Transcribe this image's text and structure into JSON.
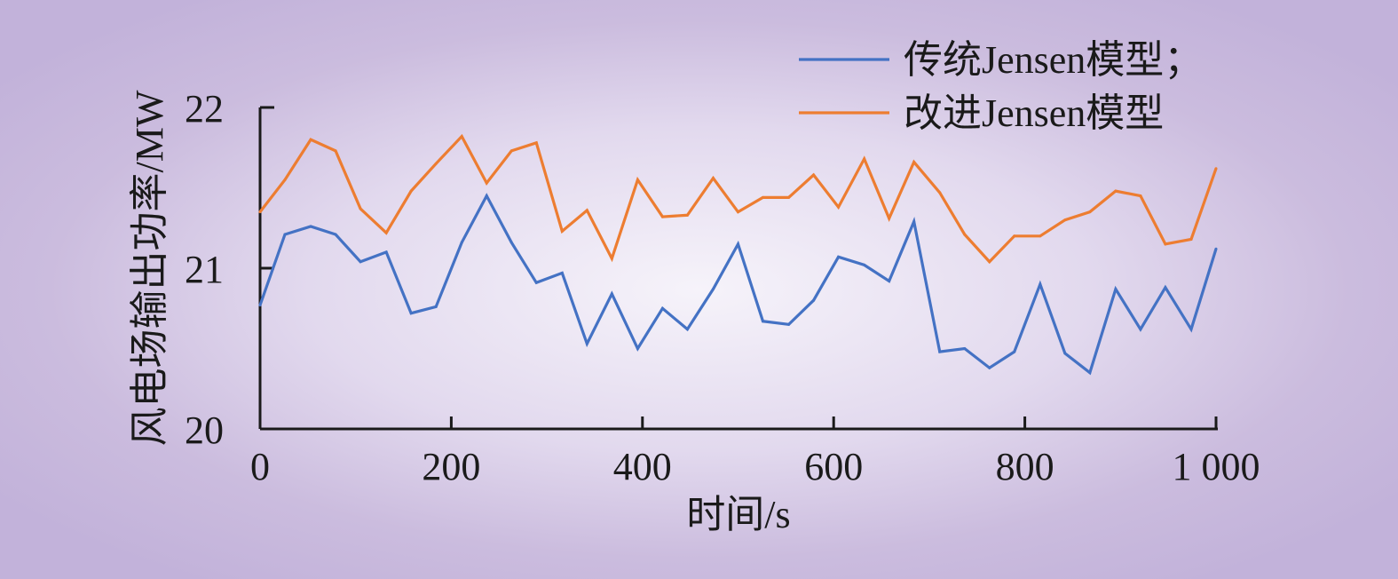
{
  "chart_data": {
    "type": "line",
    "xlabel": "时间/s",
    "ylabel": "风电场输出功率/MW",
    "xlim": [
      0,
      1000
    ],
    "ylim": [
      20,
      22
    ],
    "xticks": [
      0,
      200,
      400,
      600,
      800,
      1000
    ],
    "xtick_labels": [
      "0",
      "200",
      "400",
      "600",
      "800",
      "1 000"
    ],
    "yticks": [
      20,
      21,
      22
    ],
    "ytick_labels": [
      "20",
      "21",
      "22"
    ],
    "grid": false,
    "legend_position": "top-right",
    "x": [
      0,
      26,
      53,
      79,
      105,
      132,
      158,
      184,
      211,
      237,
      263,
      289,
      316,
      342,
      368,
      395,
      421,
      447,
      474,
      500,
      526,
      553,
      579,
      605,
      632,
      658,
      684,
      711,
      737,
      763,
      789,
      816,
      842,
      868,
      895,
      921,
      947,
      974,
      1000
    ],
    "series": [
      {
        "name": "传统Jensen模型；",
        "color": "#4472c4",
        "values": [
          20.77,
          21.21,
          21.26,
          21.21,
          21.04,
          21.1,
          20.72,
          20.76,
          21.16,
          21.45,
          21.16,
          20.91,
          20.97,
          20.53,
          20.84,
          20.5,
          20.75,
          20.62,
          20.87,
          21.15,
          20.67,
          20.65,
          20.8,
          21.07,
          21.02,
          20.92,
          21.29,
          20.48,
          20.5,
          20.38,
          20.48,
          20.9,
          20.47,
          20.35,
          20.87,
          20.62,
          20.88,
          20.62,
          21.12
        ]
      },
      {
        "name": "改进Jensen模型",
        "color": "#ed7d31",
        "values": [
          21.35,
          21.55,
          21.8,
          21.73,
          21.37,
          21.22,
          21.48,
          21.65,
          21.82,
          21.53,
          21.73,
          21.78,
          21.23,
          21.36,
          21.06,
          21.55,
          21.32,
          21.33,
          21.56,
          21.35,
          21.44,
          21.44,
          21.58,
          21.38,
          21.68,
          21.31,
          21.66,
          21.47,
          21.21,
          21.04,
          21.2,
          21.2,
          21.3,
          21.35,
          21.48,
          21.45,
          21.15,
          21.18,
          21.62
        ]
      }
    ]
  }
}
